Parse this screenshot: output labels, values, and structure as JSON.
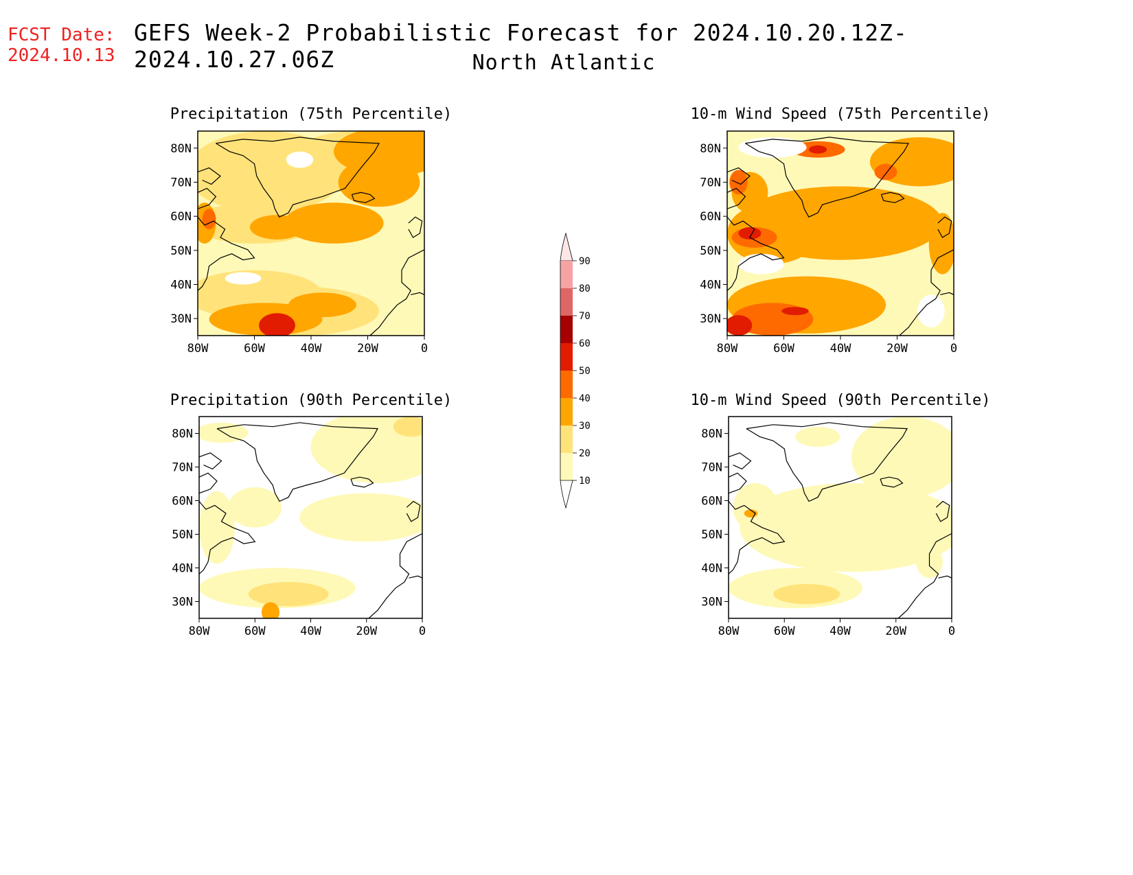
{
  "header": {
    "fcst_label": "FCST Date:",
    "fcst_date": "2024.10.13",
    "title": "GEFS Week-2 Probabilistic Forecast for 2024.10.20.12Z-2024.10.27.06Z",
    "subtitle": "North Atlantic"
  },
  "colors": {
    "fcst_text": "#ee2222",
    "levels": [
      "#ffffff",
      "#fff9b8",
      "#ffe37a",
      "#ffa600",
      "#ff6a00",
      "#e21c00",
      "#a60000",
      "#e06666",
      "#f5a3a3",
      "#ffe6e6"
    ]
  },
  "panels": [
    {
      "title": "Precipitation (75th Percentile)",
      "variable": "precipitation",
      "percentile": "75th"
    },
    {
      "title": "10-m Wind Speed (75th Percentile)",
      "variable": "wind",
      "percentile": "75th"
    },
    {
      "title": "Precipitation (90th Percentile)",
      "variable": "precipitation",
      "percentile": "90th"
    },
    {
      "title": "10-m Wind Speed (90th Percentile)",
      "variable": "wind",
      "percentile": "90th"
    }
  ],
  "map": {
    "lat_labels": [
      "80N",
      "70N",
      "60N",
      "50N",
      "40N",
      "30N"
    ],
    "lon_labels": [
      "80W",
      "60W",
      "40W",
      "20W",
      "0"
    ]
  },
  "colorbar": {
    "labels": [
      "90",
      "80",
      "70",
      "60",
      "50",
      "40",
      "30",
      "20",
      "10"
    ]
  }
}
